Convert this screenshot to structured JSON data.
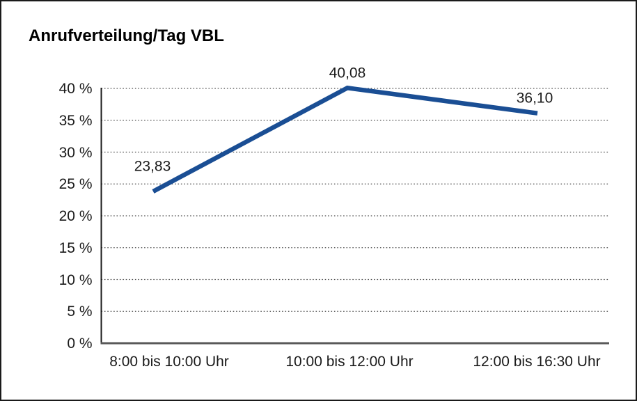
{
  "chart_data": {
    "type": "line",
    "title": "Anrufverteilung/Tag VBL",
    "categories": [
      "8:00 bis 10:00 Uhr",
      "10:00 bis 12:00 Uhr",
      "12:00 bis 16:30 Uhr"
    ],
    "values": [
      23.83,
      40.08,
      36.1
    ],
    "value_labels": [
      "23,83",
      "40,08",
      "36,10"
    ],
    "xlabel": "",
    "ylabel": "",
    "ylim": [
      0,
      40
    ],
    "y_tick_step": 5,
    "y_ticks": [
      {
        "value": 0,
        "label": "0 %"
      },
      {
        "value": 5,
        "label": "5 %"
      },
      {
        "value": 10,
        "label": "10 %"
      },
      {
        "value": 15,
        "label": "15 %"
      },
      {
        "value": 20,
        "label": "20 %"
      },
      {
        "value": 25,
        "label": "25 %"
      },
      {
        "value": 30,
        "label": "30 %"
      },
      {
        "value": 35,
        "label": "35 %"
      },
      {
        "value": 40,
        "label": "40 %"
      }
    ],
    "grid": "horizontal-dotted",
    "legend": "none",
    "colors": {
      "line": "#1a4e94",
      "text": "#1a1a1a",
      "grid": "#4d4d4d",
      "y_axis": "#1a1a1a",
      "x_axis": "#595959",
      "background": "#ffffff",
      "border": "#1a1a1a"
    }
  }
}
